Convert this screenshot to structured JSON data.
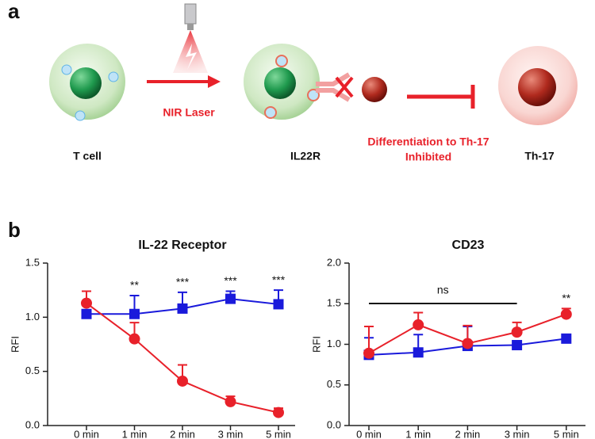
{
  "panel_a": {
    "label": "a",
    "cell_label": "T cell",
    "laser_label": "NIR Laser",
    "receptor_label": "IL22R",
    "outcome_line1": "Differentiation to Th-17",
    "outcome_line2": "Inhibited",
    "th17_label": "Th-17"
  },
  "panel_b": {
    "label": "b"
  },
  "chart_data": [
    {
      "type": "line",
      "title": "IL-22 Receptor",
      "y_label": "RFI",
      "categories": [
        "0 min",
        "1 min",
        "2 min",
        "3 min",
        "5 min"
      ],
      "ylim": [
        0,
        1.5
      ],
      "yticks": [
        {
          "value": 0,
          "label": "0.0"
        },
        0.5,
        {
          "value": 1,
          "label": "1.0"
        },
        1.5
      ],
      "series": [
        {
          "color": "#1a1adb",
          "marker": "square",
          "values": [
            1.03,
            1.03,
            1.08,
            1.17,
            1.12
          ],
          "errors": [
            0.03,
            0.17,
            0.15,
            0.07,
            0.13
          ]
        },
        {
          "color": "#e8212a",
          "marker": "circle",
          "values": [
            1.13,
            0.8,
            0.41,
            0.22,
            0.12
          ],
          "errors": [
            0.11,
            0.15,
            0.15,
            0.05,
            0.04
          ]
        }
      ],
      "significance": [
        null,
        "**",
        "***",
        "***",
        "***"
      ]
    },
    {
      "type": "line",
      "title": "CD23",
      "y_label": "RFI",
      "categories": [
        "0 min",
        "1 min",
        "2 min",
        "3 min",
        "5 min"
      ],
      "ylim": [
        0,
        2.0
      ],
      "yticks": [
        {
          "value": 0,
          "label": "0.0"
        },
        0.5,
        {
          "value": 1,
          "label": "1.0"
        },
        1.5,
        {
          "value": 2,
          "label": "2.0"
        }
      ],
      "series": [
        {
          "color": "#1a1adb",
          "marker": "square",
          "values": [
            0.87,
            0.9,
            0.98,
            0.99,
            1.07
          ],
          "errors": [
            0.21,
            0.22,
            0.24,
            0.02,
            0.03
          ]
        },
        {
          "color": "#e8212a",
          "marker": "circle",
          "values": [
            0.89,
            1.24,
            1.01,
            1.15,
            1.37
          ],
          "errors": [
            0.33,
            0.15,
            0.22,
            0.12,
            0.07
          ]
        }
      ],
      "significance": [
        null,
        null,
        null,
        null,
        "**"
      ],
      "bracket_label": "ns"
    }
  ]
}
